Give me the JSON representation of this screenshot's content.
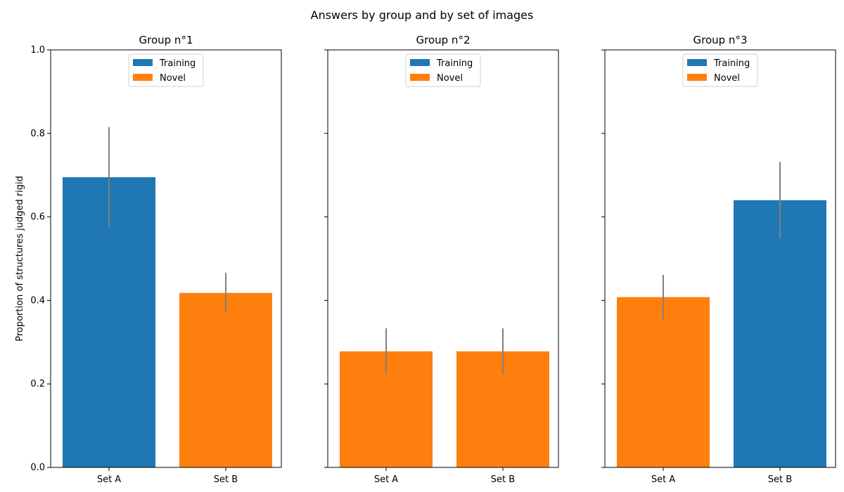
{
  "figure_title": "Answers by group and by set of images",
  "ylabel": "Proportion of structures judged rigid",
  "colors": {
    "training": "#1f77b4",
    "novel": "#ff7f0e",
    "error_bar": "#808080",
    "axis": "#000000"
  },
  "chart_data": [
    {
      "type": "bar",
      "title": "Group n°1",
      "categories": [
        "Set A",
        "Set B"
      ],
      "values": [
        0.695,
        0.418
      ],
      "error": [
        0.12,
        0.048
      ],
      "bar_kind": [
        "training",
        "novel"
      ],
      "ylim": [
        0,
        1
      ],
      "yticks": [
        "0.0",
        "0.2",
        "0.4",
        "0.6",
        "0.8",
        "1.0"
      ],
      "legend": [
        "Training",
        "Novel"
      ],
      "legend_position": "upper center"
    },
    {
      "type": "bar",
      "title": "Group n°2",
      "categories": [
        "Set A",
        "Set B"
      ],
      "values": [
        0.278,
        0.278
      ],
      "error": [
        0.055,
        0.055
      ],
      "bar_kind": [
        "novel",
        "novel"
      ],
      "ylim": [
        0,
        1
      ],
      "legend": [
        "Training",
        "Novel"
      ],
      "legend_position": "upper center"
    },
    {
      "type": "bar",
      "title": "Group n°3",
      "categories": [
        "Set A",
        "Set B"
      ],
      "values": [
        0.408,
        0.64
      ],
      "error": [
        0.053,
        0.092
      ],
      "bar_kind": [
        "novel",
        "training"
      ],
      "ylim": [
        0,
        1
      ],
      "legend": [
        "Training",
        "Novel"
      ],
      "legend_position": "upper center"
    }
  ]
}
